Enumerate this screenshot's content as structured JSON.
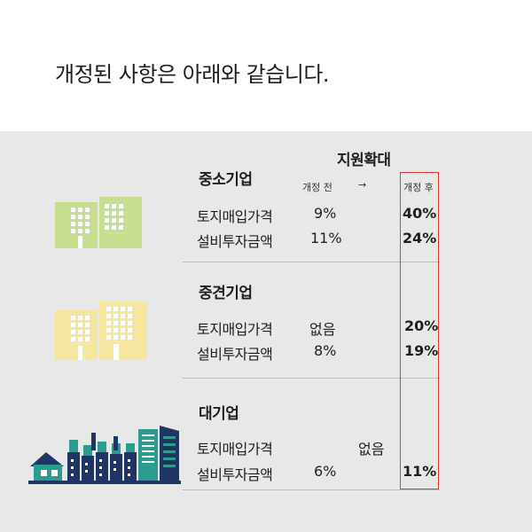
{
  "headline": "개정된 사항은 아래와 같습니다.",
  "support_title": "지원확대",
  "before_label": "개정 전",
  "arrow": "→",
  "after_label": "개정 후",
  "sections": [
    {
      "title": "중소기업",
      "rows": [
        {
          "label": "토지매입가격",
          "before": "9%",
          "after": "40%"
        },
        {
          "label": "설비투자금액",
          "before": "11%",
          "after": "24%"
        }
      ]
    },
    {
      "title": "중견기업",
      "rows": [
        {
          "label": "토지매입가격",
          "before": "없음",
          "after": "20%"
        },
        {
          "label": "설비투자금액",
          "before": "8%",
          "after": "19%"
        }
      ]
    },
    {
      "title": "대기업",
      "rows": [
        {
          "label": "토지매입가격",
          "before": "",
          "after": ""
        },
        {
          "label": "설비투자금액",
          "before": "6%",
          "after": "11%"
        }
      ],
      "merged_before": "없음"
    }
  ],
  "colors": {
    "small_building": "#c5df8f",
    "mid_building": "#f5e6a0",
    "large_navy": "#1f3566",
    "large_teal": "#2a9d8f",
    "highlight_box": "#e53935",
    "background": "#e8e8e8"
  },
  "icons": {
    "small": "small-business-building-icon",
    "mid": "midsize-business-building-icon",
    "large": "large-enterprise-cityscape-icon"
  }
}
